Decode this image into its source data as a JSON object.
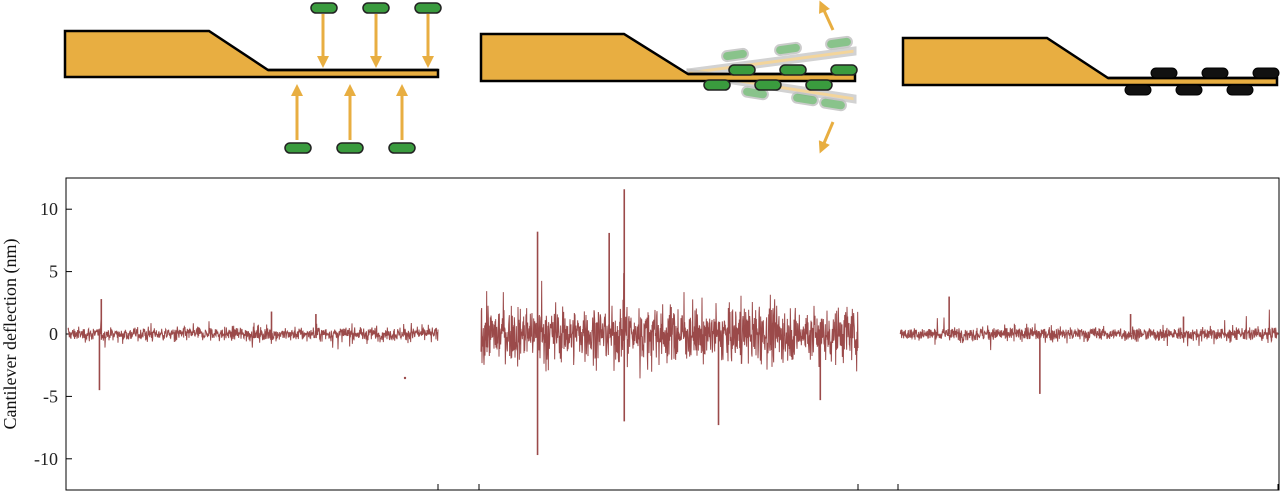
{
  "chart_data": {
    "type": "line",
    "title": "",
    "xlabel": "",
    "ylabel": "Cantilever deflection (nm)",
    "ylim": [
      -12.5,
      12.5
    ],
    "yticks": [
      10,
      5,
      0,
      -5,
      -10
    ],
    "ytick_labels": [
      "10",
      "5",
      "0",
      "-5",
      "-10"
    ],
    "grid": false,
    "legend": "none",
    "series_color": "#9b4a4a",
    "segments": [
      {
        "phase": "before",
        "amplitude_nm": 0.7,
        "spikes": [
          {
            "t": 0.09,
            "y": 2.8
          },
          {
            "t": 0.085,
            "y": -4.5
          },
          {
            "t": 0.55,
            "y": 1.8
          },
          {
            "t": 0.67,
            "y": 1.6
          }
        ]
      },
      {
        "phase": "during",
        "amplitude_nm": 2.8,
        "spikes": [
          {
            "t": 0.15,
            "y": 8.2
          },
          {
            "t": 0.38,
            "y": 11.6
          },
          {
            "t": 0.34,
            "y": 8.1
          },
          {
            "t": 0.15,
            "y": -9.7
          },
          {
            "t": 0.38,
            "y": -7.0
          },
          {
            "t": 0.63,
            "y": -7.3
          },
          {
            "t": 0.9,
            "y": -5.3
          }
        ]
      },
      {
        "phase": "after",
        "amplitude_nm": 0.7,
        "spikes": [
          {
            "t": 0.13,
            "y": 3.0
          },
          {
            "t": 0.37,
            "y": -4.8
          },
          {
            "t": 0.61,
            "y": 1.6
          },
          {
            "t": 0.75,
            "y": 1.4
          }
        ]
      }
    ]
  },
  "colors": {
    "cantilever": "#e8ae41",
    "outline": "#000000",
    "molecule_free": "#3a9b3e",
    "molecule_bound": "#111111",
    "arrow": "#e8ae41",
    "ghost": "#a9a9a9"
  },
  "illustrations": [
    {
      "name": "molecules-approaching-cantilever",
      "molecule_count": 6
    },
    {
      "name": "molecules-colliding-cantilever-vibrating",
      "molecule_count": 6
    },
    {
      "name": "molecules-adsorbed-on-cantilever",
      "molecule_count": 6
    }
  ]
}
